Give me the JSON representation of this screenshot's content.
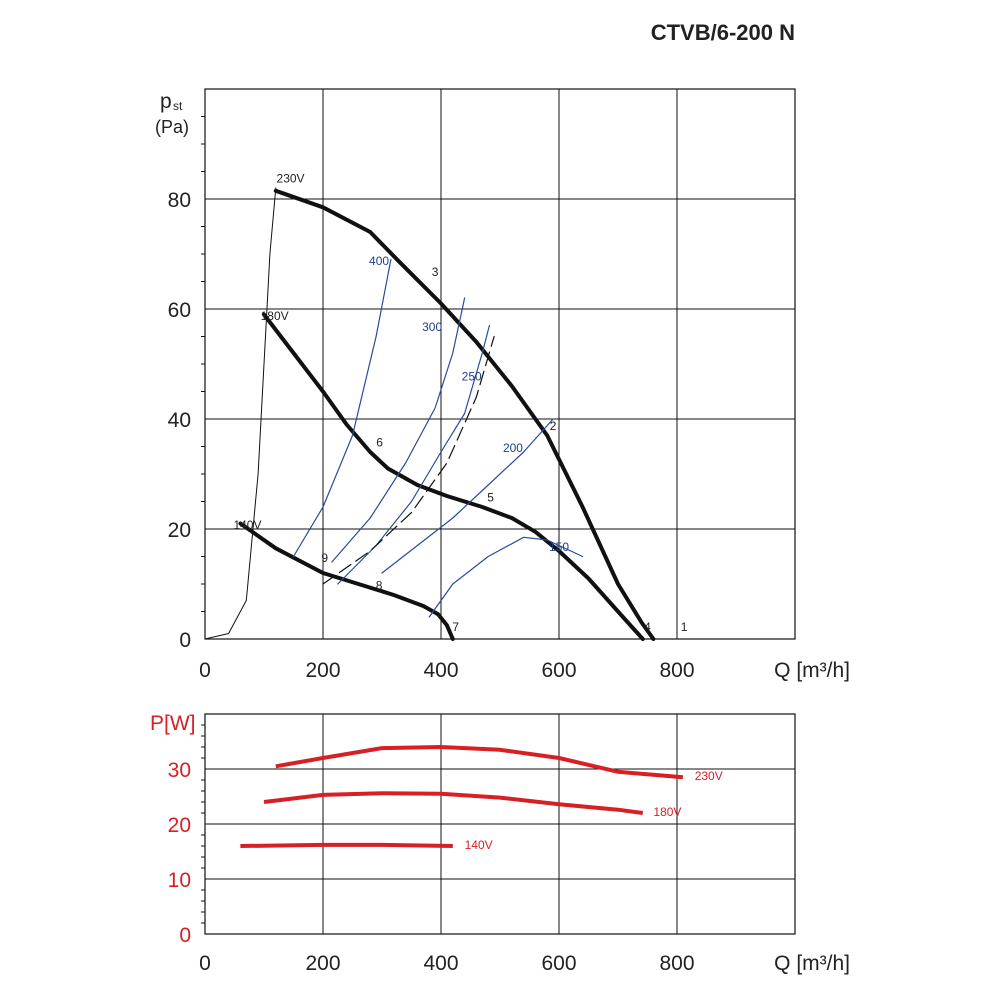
{
  "title": "CTVB/6-200 N",
  "colors": {
    "grid": "#111111",
    "voltage_curve": "#111111",
    "rpm_curve": "#2b4a9b",
    "power_curve": "#d71f26",
    "system_curve": "#111111"
  },
  "chart_data": [
    {
      "type": "line",
      "name": "pressure",
      "ylabel_main": "p",
      "ylabel_sub": "st",
      "ylabel_unit": "(Pa)",
      "xlabel": "Q [m³/h]",
      "xlim": [
        0,
        1000
      ],
      "ylim": [
        0,
        100
      ],
      "x_ticks": [
        "0",
        "200",
        "400",
        "600",
        "800"
      ],
      "x_tick_values": [
        0,
        200,
        400,
        600,
        800
      ],
      "y_ticks": [
        "0",
        "20",
        "40",
        "60",
        "80"
      ],
      "y_tick_values": [
        0,
        20,
        40,
        60,
        80
      ],
      "grid": true,
      "series": [
        {
          "name": "230V",
          "style": "voltage",
          "points": [
            [
              120,
              81.5
            ],
            [
              200,
              78.5
            ],
            [
              280,
              74
            ],
            [
              330,
              68.5
            ],
            [
              400,
              61
            ],
            [
              460,
              54
            ],
            [
              520,
              46
            ],
            [
              580,
              37
            ],
            [
              640,
              24
            ],
            [
              700,
              10
            ],
            [
              740,
              3
            ],
            [
              760,
              0
            ]
          ]
        },
        {
          "name": "180V",
          "style": "voltage",
          "points": [
            [
              100,
              59
            ],
            [
              150,
              52
            ],
            [
              200,
              45
            ],
            [
              240,
              39
            ],
            [
              280,
              34
            ],
            [
              310,
              31
            ],
            [
              360,
              28
            ],
            [
              410,
              26
            ],
            [
              470,
              24
            ],
            [
              520,
              22
            ],
            [
              560,
              19.5
            ],
            [
              600,
              16
            ],
            [
              650,
              11
            ],
            [
              700,
              5
            ],
            [
              742,
              0
            ]
          ]
        },
        {
          "name": "140V",
          "style": "voltage",
          "points": [
            [
              60,
              21
            ],
            [
              120,
              16.5
            ],
            [
              200,
              12
            ],
            [
              260,
              10
            ],
            [
              320,
              8
            ],
            [
              370,
              6
            ],
            [
              395,
              4.5
            ],
            [
              410,
              2.5
            ],
            [
              420,
              0
            ]
          ]
        },
        {
          "name": "400",
          "style": "rpm",
          "points": [
            [
              150,
              15
            ],
            [
              200,
              24
            ],
            [
              250,
              37
            ],
            [
              290,
              55
            ],
            [
              315,
              69
            ]
          ]
        },
        {
          "name": "300",
          "style": "rpm",
          "points": [
            [
              215,
              14
            ],
            [
              280,
              22
            ],
            [
              340,
              32
            ],
            [
              390,
              42
            ],
            [
              420,
              52
            ],
            [
              440,
              62
            ]
          ]
        },
        {
          "name": "250",
          "style": "rpm",
          "points": [
            [
              225,
              10
            ],
            [
              290,
              17
            ],
            [
              350,
              25
            ],
            [
              400,
              34
            ],
            [
              440,
              41
            ],
            [
              470,
              52
            ],
            [
              482,
              57
            ]
          ]
        },
        {
          "name": "200",
          "style": "rpm",
          "points": [
            [
              300,
              12
            ],
            [
              360,
              17
            ],
            [
              420,
              22
            ],
            [
              480,
              28
            ],
            [
              540,
              34
            ],
            [
              590,
              40
            ]
          ]
        },
        {
          "name": "150",
          "style": "rpm",
          "points": [
            [
              380,
              4
            ],
            [
              420,
              10
            ],
            [
              480,
              15
            ],
            [
              540,
              18.5
            ],
            [
              580,
              18
            ],
            [
              620,
              16
            ],
            [
              640,
              15
            ]
          ]
        },
        {
          "name": "system",
          "style": "system",
          "points": [
            [
              0,
              0
            ],
            [
              40,
              1
            ],
            [
              70,
              7
            ],
            [
              90,
              30
            ],
            [
              110,
              70
            ],
            [
              120,
              82
            ]
          ]
        },
        {
          "name": "dashed",
          "style": "dashed",
          "points": [
            [
              200,
              10
            ],
            [
              280,
              16
            ],
            [
              350,
              23
            ],
            [
              410,
              32
            ],
            [
              460,
              44
            ],
            [
              490,
              55
            ]
          ]
        }
      ],
      "annotations": [
        {
          "text": "230V",
          "x": 145,
          "y": 83
        },
        {
          "text": "180V",
          "x": 118,
          "y": 58
        },
        {
          "text": "140V",
          "x": 72,
          "y": 20
        },
        {
          "text": "400",
          "x": 295,
          "y": 68
        },
        {
          "text": "300",
          "x": 385,
          "y": 56
        },
        {
          "text": "250",
          "x": 452,
          "y": 47
        },
        {
          "text": "200",
          "x": 522,
          "y": 34
        },
        {
          "text": "150",
          "x": 600,
          "y": 16
        },
        {
          "text": "1",
          "x": 812,
          "y": 1.5
        },
        {
          "text": "2",
          "x": 590,
          "y": 38
        },
        {
          "text": "3",
          "x": 390,
          "y": 66
        },
        {
          "text": "4",
          "x": 750,
          "y": 1.5
        },
        {
          "text": "5",
          "x": 484,
          "y": 25
        },
        {
          "text": "6",
          "x": 296,
          "y": 35
        },
        {
          "text": "7",
          "x": 425,
          "y": 1.5
        },
        {
          "text": "8",
          "x": 295,
          "y": 9
        },
        {
          "text": "9",
          "x": 203,
          "y": 14
        }
      ]
    },
    {
      "type": "line",
      "name": "power",
      "ylabel": "P[W]",
      "xlabel": "Q [m³/h]",
      "xlim": [
        0,
        1000
      ],
      "ylim": [
        0,
        40
      ],
      "x_ticks": [
        "0",
        "200",
        "400",
        "600",
        "800"
      ],
      "x_tick_values": [
        0,
        200,
        400,
        600,
        800
      ],
      "y_ticks": [
        "0",
        "10",
        "20",
        "30"
      ],
      "y_tick_values": [
        0,
        10,
        20,
        30
      ],
      "grid": true,
      "series": [
        {
          "name": "230V",
          "points": [
            [
              120,
              30.5
            ],
            [
              200,
              32
            ],
            [
              300,
              33.8
            ],
            [
              400,
              34
            ],
            [
              500,
              33.5
            ],
            [
              600,
              32
            ],
            [
              700,
              29.5
            ],
            [
              810,
              28.5
            ]
          ]
        },
        {
          "name": "180V",
          "points": [
            [
              100,
              24
            ],
            [
              200,
              25.3
            ],
            [
              300,
              25.6
            ],
            [
              400,
              25.5
            ],
            [
              500,
              24.8
            ],
            [
              600,
              23.6
            ],
            [
              700,
              22.6
            ],
            [
              742,
              22
            ]
          ]
        },
        {
          "name": "140V",
          "points": [
            [
              60,
              16
            ],
            [
              200,
              16.2
            ],
            [
              300,
              16.2
            ],
            [
              420,
              16
            ]
          ]
        }
      ],
      "labels": [
        {
          "text": "230V",
          "x": 830,
          "y": 28
        },
        {
          "text": "180V",
          "x": 760,
          "y": 21.5
        },
        {
          "text": "140V",
          "x": 440,
          "y": 15.5
        }
      ]
    }
  ]
}
